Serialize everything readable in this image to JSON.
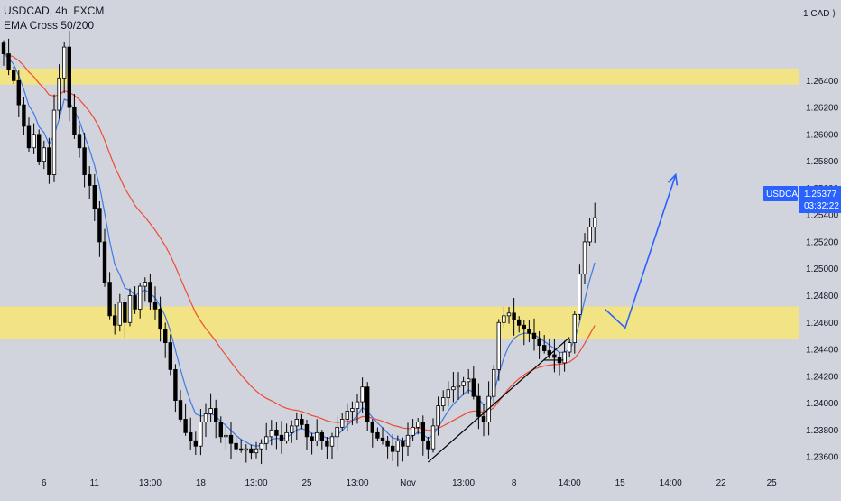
{
  "legend": {
    "symbol_line": "USDCAD, 4h, FXCM",
    "indicator_line": "EMA Cross 50/200"
  },
  "colors": {
    "background": "#d1d4dc",
    "candle": "#000000",
    "zone": "#f5e47a",
    "ema_fast": "#3f7ae6",
    "ema_slow": "#ef4b33",
    "arrow": "#2962ff",
    "price_tag": "#2962ff"
  },
  "chart_data": {
    "type": "candlestick",
    "symbol": "USDCAD",
    "timeframe": "4h",
    "currency_label": "CAD",
    "y_unit_label": "1",
    "ylim": [
      1.2348,
      1.27
    ],
    "y_ticks": [
      1.264,
      1.262,
      1.26,
      1.258,
      1.256,
      1.254,
      1.252,
      1.25,
      1.248,
      1.246,
      1.244,
      1.242,
      1.24,
      1.238,
      1.236
    ],
    "y_tick_labels": [
      "1.26400",
      "1.26200",
      "1.26000",
      "1.25800",
      "1.25600",
      "1.25400",
      "1.25200",
      "1.25000",
      "1.24800",
      "1.24600",
      "1.24400",
      "1.24200",
      "1.24000",
      "1.23800",
      "1.23600"
    ],
    "x_count": 150,
    "x_ticks": [
      {
        "label": "6",
        "i": 8
      },
      {
        "label": "11",
        "i": 18
      },
      {
        "label": "13:00",
        "i": 29
      },
      {
        "label": "18",
        "i": 39
      },
      {
        "label": "13:00",
        "i": 50
      },
      {
        "label": "25",
        "i": 60
      },
      {
        "label": "13:00",
        "i": 70
      },
      {
        "label": "Nov",
        "i": 80
      },
      {
        "label": "13:00",
        "i": 91
      },
      {
        "label": "8",
        "i": 101
      },
      {
        "label": "14:00",
        "i": 112
      },
      {
        "label": "15",
        "i": 122
      },
      {
        "label": "14:00",
        "i": 132
      },
      {
        "label": "22",
        "i": 142
      },
      {
        "label": "25",
        "i": 152
      }
    ],
    "last_price": {
      "symbol": "USDCAD",
      "value": "1.25377",
      "countdown": "03:32:22",
      "price": 1.25377
    },
    "zones": [
      {
        "from": 1.2637,
        "to": 1.2649
      },
      {
        "from": 1.2448,
        "to": 1.2472
      }
    ],
    "trendline": [
      {
        "i": 84,
        "y": 1.2356
      },
      {
        "i": 112,
        "y": 1.2449
      }
    ],
    "crosshair": {
      "i": 109,
      "y": 1.2432
    },
    "projection": [
      {
        "i": 119,
        "y": 1.247
      },
      {
        "i": 123,
        "y": 1.2456
      },
      {
        "i": 133,
        "y": 1.257
      }
    ],
    "candles_close": [
      1.266,
      1.2648,
      1.264,
      1.2622,
      1.2606,
      1.259,
      1.26,
      1.258,
      1.259,
      1.257,
      1.2618,
      1.2642,
      1.2665,
      1.262,
      1.26,
      1.259,
      1.257,
      1.2562,
      1.2545,
      1.252,
      1.249,
      1.2465,
      1.2458,
      1.2475,
      1.246,
      1.248,
      1.247,
      1.2487,
      1.249,
      1.2475,
      1.247,
      1.2455,
      1.2445,
      1.2425,
      1.2402,
      1.2388,
      1.2378,
      1.2372,
      1.2368,
      1.2386,
      1.2392,
      1.2396,
      1.2386,
      1.2375,
      1.2376,
      1.237,
      1.2366,
      1.2365,
      1.2366,
      1.2363,
      1.2366,
      1.237,
      1.2375,
      1.238,
      1.2376,
      1.2372,
      1.2378,
      1.2383,
      1.2388,
      1.2384,
      1.2375,
      1.2372,
      1.2378,
      1.2372,
      1.2368,
      1.2375,
      1.2382,
      1.2388,
      1.2394,
      1.2396,
      1.2401,
      1.2412,
      1.2386,
      1.2378,
      1.2374,
      1.2372,
      1.2368,
      1.2364,
      1.2372,
      1.2368,
      1.2376,
      1.2382,
      1.2386,
      1.2372,
      1.2366,
      1.2383,
      1.2398,
      1.2404,
      1.241,
      1.2412,
      1.2413,
      1.2416,
      1.2418,
      1.2405,
      1.239,
      1.2386,
      1.2405,
      1.2425,
      1.246,
      1.2465,
      1.2467,
      1.2462,
      1.2458,
      1.2455,
      1.2452,
      1.2448,
      1.2443,
      1.2439,
      1.2436,
      1.2434,
      1.243,
      1.2438,
      1.2445,
      1.2466,
      1.2496,
      1.252,
      1.2531,
      1.2538
    ]
  }
}
